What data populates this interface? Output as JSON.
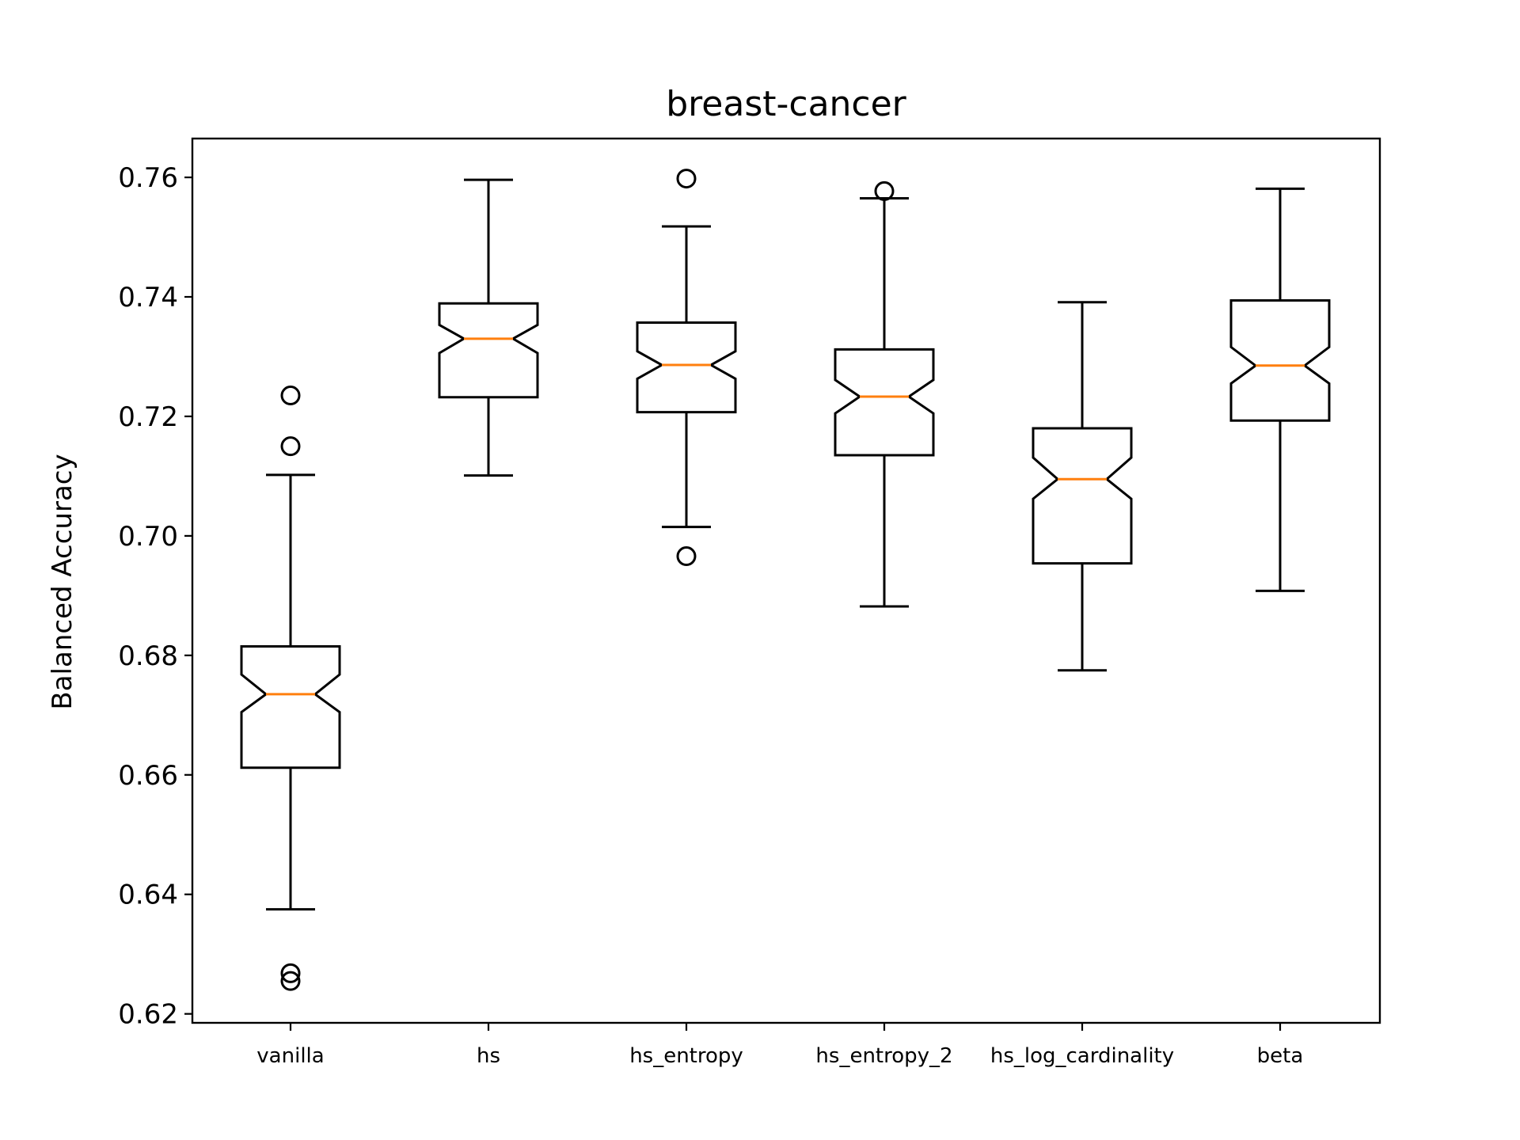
{
  "chart_data": {
    "type": "boxplot",
    "notched": true,
    "title": "breast-cancer",
    "xlabel": "",
    "ylabel": "Balanced Accuracy",
    "ylim": [
      0.6185,
      0.7665
    ],
    "yticks": [
      0.62,
      0.64,
      0.66,
      0.68,
      0.7,
      0.72,
      0.74,
      0.76
    ],
    "ytick_labels": [
      "0.62",
      "0.64",
      "0.66",
      "0.68",
      "0.70",
      "0.72",
      "0.74",
      "0.76"
    ],
    "categories": [
      "vanilla",
      "hs",
      "hs_entropy",
      "hs_entropy_2",
      "hs_log_cardinality",
      "beta"
    ],
    "grid": false,
    "colors": {
      "box": "#000000",
      "median": "#ff7f0e",
      "background": "#ffffff"
    },
    "boxes": [
      {
        "name": "vanilla",
        "whisker_low": 0.6375,
        "q1": 0.6612,
        "median": 0.6735,
        "q3": 0.6815,
        "whisker_high": 0.7102,
        "notch_low": 0.6705,
        "notch_high": 0.6768,
        "fliers": [
          0.7235,
          0.715,
          0.6268,
          0.6255
        ]
      },
      {
        "name": "hs",
        "whisker_low": 0.7101,
        "q1": 0.7232,
        "median": 0.733,
        "q3": 0.7389,
        "whisker_high": 0.7596,
        "notch_low": 0.7306,
        "notch_high": 0.7353,
        "fliers": []
      },
      {
        "name": "hs_entropy",
        "whisker_low": 0.7015,
        "q1": 0.7207,
        "median": 0.7286,
        "q3": 0.7357,
        "whisker_high": 0.7518,
        "notch_low": 0.7263,
        "notch_high": 0.7309,
        "fliers": [
          0.7598,
          0.6966
        ]
      },
      {
        "name": "hs_entropy_2",
        "whisker_low": 0.6882,
        "q1": 0.7135,
        "median": 0.7233,
        "q3": 0.7312,
        "whisker_high": 0.7565,
        "notch_low": 0.7205,
        "notch_high": 0.7261,
        "fliers": [
          0.7577
        ]
      },
      {
        "name": "hs_log_cardinality",
        "whisker_low": 0.6775,
        "q1": 0.6954,
        "median": 0.7095,
        "q3": 0.718,
        "whisker_high": 0.7391,
        "notch_low": 0.7062,
        "notch_high": 0.7131,
        "fliers": []
      },
      {
        "name": "beta",
        "whisker_low": 0.6908,
        "q1": 0.7193,
        "median": 0.7285,
        "q3": 0.7394,
        "whisker_high": 0.7581,
        "notch_low": 0.7255,
        "notch_high": 0.7316,
        "fliers": []
      }
    ]
  }
}
